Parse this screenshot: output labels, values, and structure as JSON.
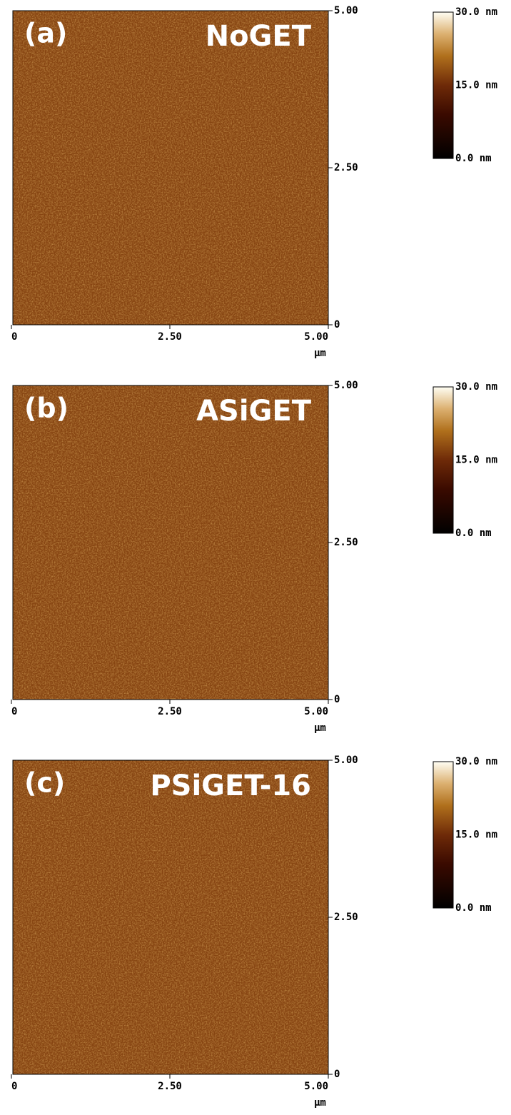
{
  "panels": [
    {
      "label": "(a)",
      "title": "NoGET",
      "x_ticks": [
        "0",
        "2.50",
        "5.00"
      ],
      "y_ticks": [
        "5.00",
        "2.50",
        "0"
      ],
      "x_unit": "μm",
      "colorbar_ticks": [
        "30.0 nm",
        "15.0 nm",
        "0.0 nm"
      ]
    },
    {
      "label": "(b)",
      "title": "ASiGET",
      "x_ticks": [
        "0",
        "2.50",
        "5.00"
      ],
      "y_ticks": [
        "5.00",
        "2.50",
        "0"
      ],
      "x_unit": "μm",
      "colorbar_ticks": [
        "30.0 nm",
        "15.0 nm",
        "0.0 nm"
      ]
    },
    {
      "label": "(c)",
      "title": "PSiGET-16",
      "x_ticks": [
        "0",
        "2.50",
        "5.00"
      ],
      "y_ticks": [
        "5.00",
        "2.50",
        "0"
      ],
      "x_unit": "μm",
      "colorbar_ticks": [
        "30.0 nm",
        "15.0 nm",
        "0.0 nm"
      ]
    }
  ]
}
